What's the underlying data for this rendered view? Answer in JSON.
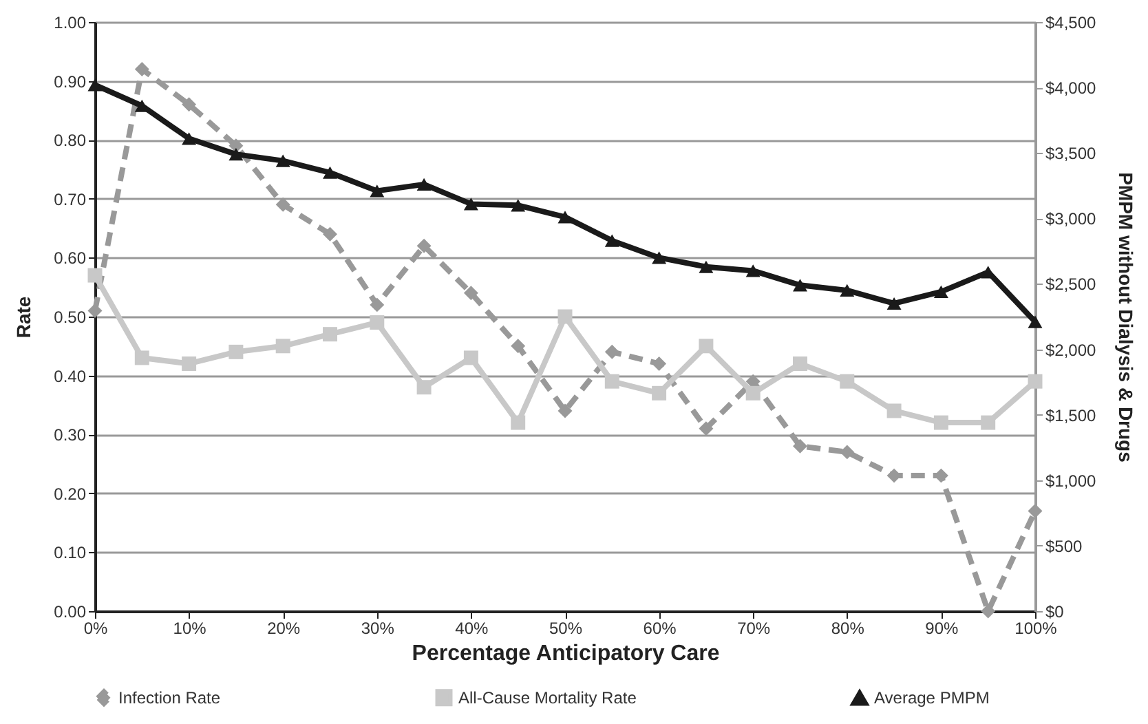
{
  "chart_data": {
    "type": "line",
    "xlabel": "Percentage Anticipatory Care",
    "ylabel": "Rate",
    "y2label": "PMPM without Dialysis & Drugs",
    "x": [
      0,
      5,
      10,
      15,
      20,
      25,
      30,
      35,
      40,
      45,
      50,
      55,
      60,
      65,
      70,
      75,
      80,
      85,
      90,
      95,
      100
    ],
    "xlim": [
      0,
      100
    ],
    "xticks": [
      {
        "value": 0,
        "label": "0%"
      },
      {
        "value": 10,
        "label": "10%"
      },
      {
        "value": 20,
        "label": "20%"
      },
      {
        "value": 30,
        "label": "30%"
      },
      {
        "value": 40,
        "label": "40%"
      },
      {
        "value": 50,
        "label": "50%"
      },
      {
        "value": 60,
        "label": "60%"
      },
      {
        "value": 70,
        "label": "70%"
      },
      {
        "value": 80,
        "label": "80%"
      },
      {
        "value": 90,
        "label": "90%"
      },
      {
        "value": 100,
        "label": "100%"
      }
    ],
    "ylim": [
      0,
      1
    ],
    "yticks": [
      {
        "value": 0,
        "label": "0.00"
      },
      {
        "value": 0.1,
        "label": "0.10"
      },
      {
        "value": 0.2,
        "label": "0.20"
      },
      {
        "value": 0.3,
        "label": "0.30"
      },
      {
        "value": 0.4,
        "label": "0.40"
      },
      {
        "value": 0.5,
        "label": "0.50"
      },
      {
        "value": 0.6,
        "label": "0.60"
      },
      {
        "value": 0.7,
        "label": "0.70"
      },
      {
        "value": 0.8,
        "label": "0.80"
      },
      {
        "value": 0.9,
        "label": "0.90"
      },
      {
        "value": 1,
        "label": "1.00"
      }
    ],
    "y2lim": [
      0,
      4500
    ],
    "y2ticks": [
      {
        "value": 0,
        "label": "$0"
      },
      {
        "value": 500,
        "label": "$500"
      },
      {
        "value": 1000,
        "label": "$1,000"
      },
      {
        "value": 1500,
        "label": "$1,500"
      },
      {
        "value": 2000,
        "label": "$2,000"
      },
      {
        "value": 2500,
        "label": "$2,500"
      },
      {
        "value": 3000,
        "label": "$3,000"
      },
      {
        "value": 3500,
        "label": "$3,500"
      },
      {
        "value": 4000,
        "label": "$4,000"
      },
      {
        "value": 4500,
        "label": "$4,500"
      }
    ],
    "grid": "y",
    "legend": "bottom",
    "series": [
      {
        "name": "Infection Rate",
        "color": "#999999",
        "marker": "diamond",
        "line_style": "dashed",
        "values": [
          0.51,
          0.92,
          0.86,
          0.79,
          0.69,
          0.64,
          0.52,
          0.62,
          0.54,
          0.45,
          0.34,
          0.44,
          0.42,
          0.31,
          0.39,
          0.28,
          0.27,
          0.23,
          0.23,
          0.0,
          0.17
        ]
      },
      {
        "name": "All-Cause Mortality Rate",
        "color": "#c8c8c8",
        "marker": "square",
        "line_style": "solid",
        "values": [
          0.57,
          0.43,
          0.42,
          0.44,
          0.45,
          0.47,
          0.49,
          0.38,
          0.43,
          0.32,
          0.5,
          0.39,
          0.37,
          0.45,
          0.37,
          0.42,
          0.39,
          0.34,
          0.32,
          0.32,
          0.39
        ]
      },
      {
        "name": "Average PMPM",
        "color": "#1a1a1a",
        "marker": "triangle",
        "line_style": "solid",
        "axis": "y2",
        "values": [
          4020,
          3860,
          3610,
          3490,
          3440,
          3350,
          3210,
          3260,
          3110,
          3100,
          3010,
          2830,
          2700,
          2630,
          2600,
          2490,
          2450,
          2350,
          2440,
          2590,
          2210
        ]
      }
    ]
  }
}
